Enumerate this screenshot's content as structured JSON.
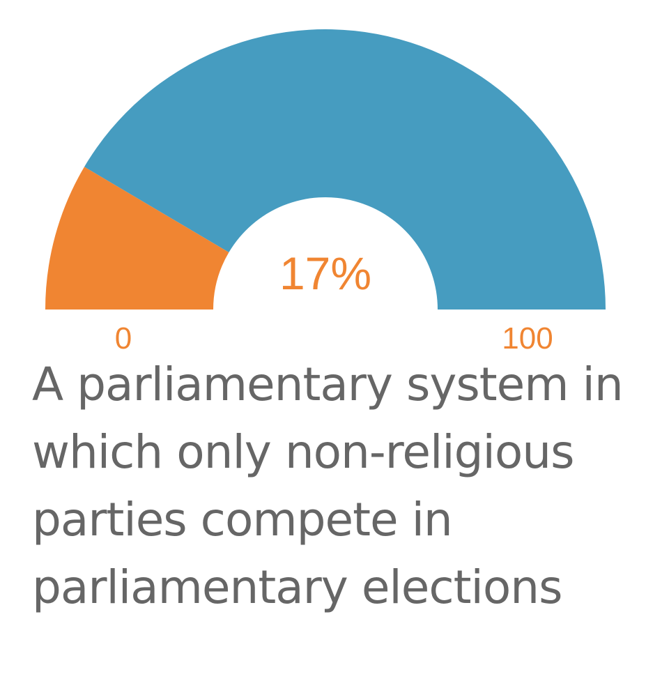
{
  "chart_data": {
    "type": "gauge",
    "value": 17,
    "value_label": "17%",
    "min": 0,
    "max": 100,
    "min_label": "0",
    "max_label": "100",
    "caption": "A parliamentary system in which only non-religious parties compete in parliamentary elections",
    "colors": {
      "value": "#f08532",
      "remainder": "#469cc0",
      "text": "#f08532",
      "caption": "#666666"
    }
  }
}
